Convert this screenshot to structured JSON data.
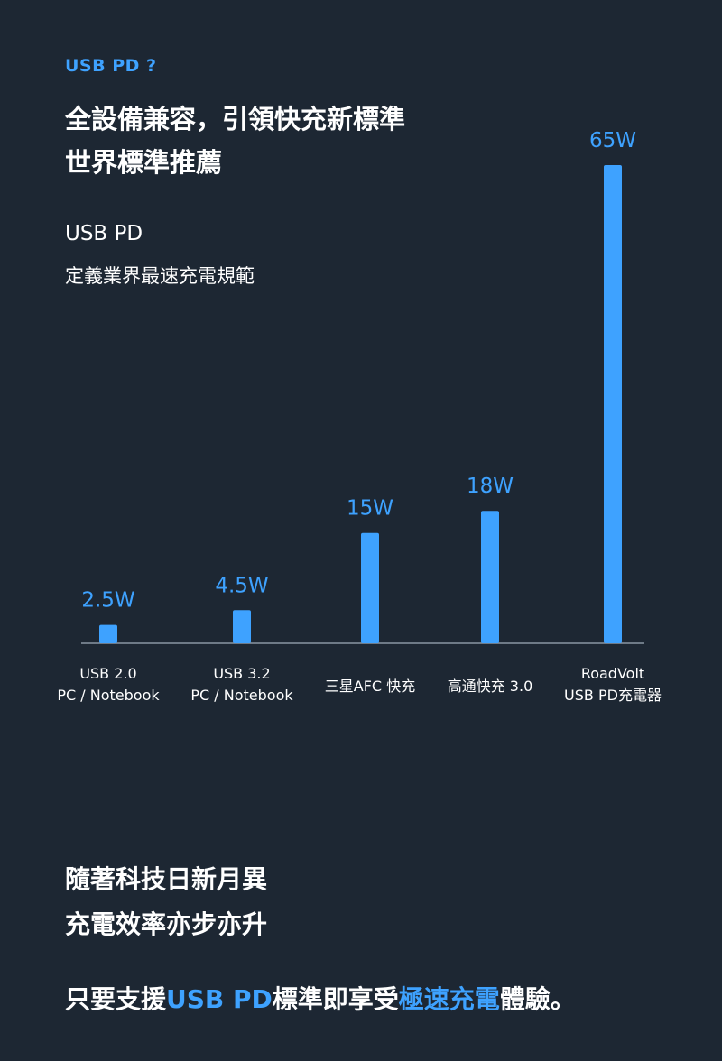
{
  "header": {
    "eyebrow": "USB PD ?",
    "headline_line1": "全設備兼容，引領快充新標準",
    "headline_line2": "世界標準推薦",
    "sub_line1": "USB PD",
    "sub_line2": "定義業界最速充電規範"
  },
  "chart_data": {
    "type": "bar",
    "categories": [
      [
        "USB 2.0",
        "PC / Notebook"
      ],
      [
        "USB 3.2",
        "PC / Notebook"
      ],
      [
        "三星AFC 快充"
      ],
      [
        "高通快充 3.0"
      ],
      [
        "RoadVolt",
        "USB PD充電器"
      ]
    ],
    "values": [
      2.5,
      4.5,
      15,
      18,
      65
    ],
    "value_labels": [
      "2.5W",
      "4.5W",
      "15W",
      "18W",
      "65W"
    ],
    "ylim": [
      0,
      65
    ],
    "grid": false,
    "bar_color": "#3ea2ff",
    "label_color": "#3ea2ff",
    "axis_color": "#8a96a3"
  },
  "footer": {
    "line1": "隨著科技日新月異",
    "line2": "充電效率亦步亦升",
    "cta_part1": "只要支援",
    "cta_highlight1": "USB PD",
    "cta_part2": "標準即享受",
    "cta_highlight2": "極速充電",
    "cta_part3": "體驗。"
  }
}
